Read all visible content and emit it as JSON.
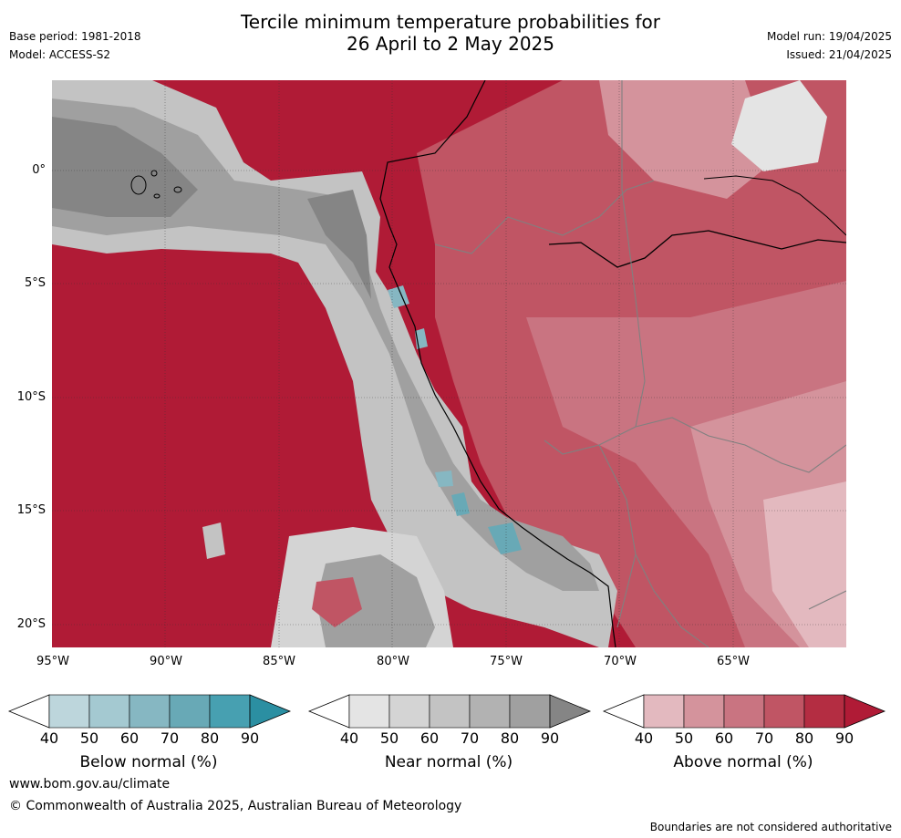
{
  "header": {
    "title_line1": "Tercile minimum temperature probabilities for",
    "title_line2": "26 April to 2 May 2025",
    "base_period": "Base period: 1981-2018",
    "model": "Model: ACCESS-S2",
    "model_run": "Model run: 19/04/2025",
    "issued": "Issued: 21/04/2025"
  },
  "map": {
    "lat_labels": [
      "0°",
      "5°S",
      "10°S",
      "15°S",
      "20°S"
    ],
    "lon_labels": [
      "95°W",
      "90°W",
      "85°W",
      "80°W",
      "75°W",
      "70°W",
      "65°W"
    ]
  },
  "legends": [
    {
      "title": "Below normal (%)",
      "ticks": [
        "40",
        "50",
        "60",
        "70",
        "80",
        "90"
      ],
      "colors": [
        "#ffffff",
        "#bdd6dc",
        "#a4c9d1",
        "#86b7c2",
        "#68a9b6",
        "#47a0b1",
        "#2b8fa2"
      ]
    },
    {
      "title": "Near normal (%)",
      "ticks": [
        "40",
        "50",
        "60",
        "70",
        "80",
        "90"
      ],
      "colors": [
        "#ffffff",
        "#e4e4e4",
        "#d4d4d4",
        "#c3c3c3",
        "#b2b2b2",
        "#a0a0a0",
        "#858585"
      ]
    },
    {
      "title": "Above normal (%)",
      "ticks": [
        "40",
        "50",
        "60",
        "70",
        "80",
        "90"
      ],
      "colors": [
        "#ffffff",
        "#e3b9bf",
        "#d4939c",
        "#c97481",
        "#c05564",
        "#b42d42",
        "#b01b36"
      ]
    }
  ],
  "footer": {
    "website": "www.bom.gov.au/climate",
    "copyright": "© Commonwealth of Australia 2025, Australian Bureau of Meteorology",
    "disclaimer": "Boundaries are not considered authoritative"
  }
}
